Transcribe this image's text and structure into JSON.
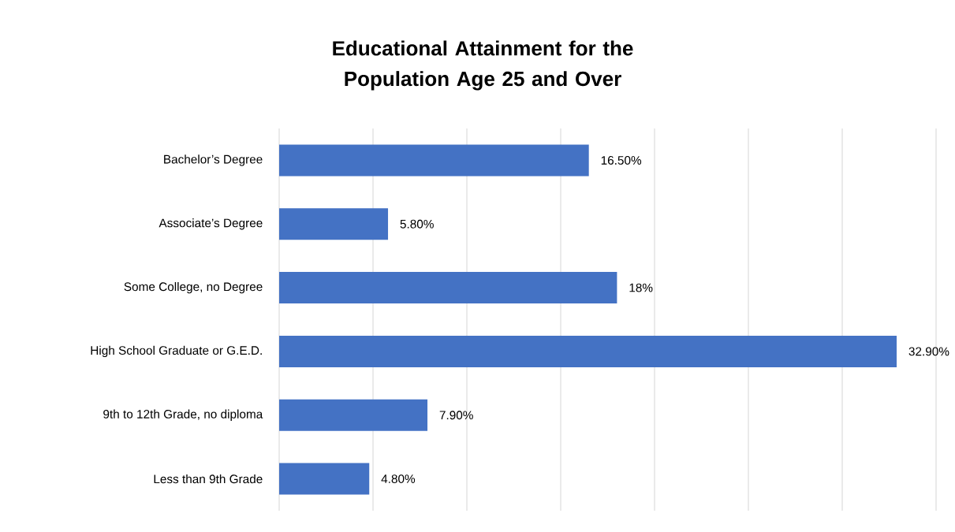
{
  "chart_data": {
    "type": "bar",
    "orientation": "horizontal",
    "title": "Educational Attainment for the Population Age 25 and Over",
    "categories": [
      "Bachelor’s Degree",
      "Associate’s Degree",
      "Some College, no Degree",
      "High School Graduate or G.E.D.",
      "9th to 12th Grade, no diploma",
      "Less than 9th Grade"
    ],
    "values": [
      16.5,
      5.8,
      18,
      32.9,
      7.9,
      4.8
    ],
    "value_labels": [
      "16.50%",
      "5.80%",
      "18%",
      "32.90%",
      "7.90%",
      "4.80%"
    ],
    "color": "#4472c4",
    "xlim": [
      0,
      35
    ],
    "xticks": [
      {
        "value": 0,
        "label": null
      },
      {
        "value": 5,
        "label": null
      },
      {
        "value": 10,
        "label": null
      },
      {
        "value": 15,
        "label": null
      },
      {
        "value": 20,
        "label": null
      },
      {
        "value": 25,
        "label": null
      },
      {
        "value": 30,
        "label": null
      },
      {
        "value": 35,
        "label": null
      }
    ],
    "tick_labels": "y",
    "grid": "x"
  }
}
